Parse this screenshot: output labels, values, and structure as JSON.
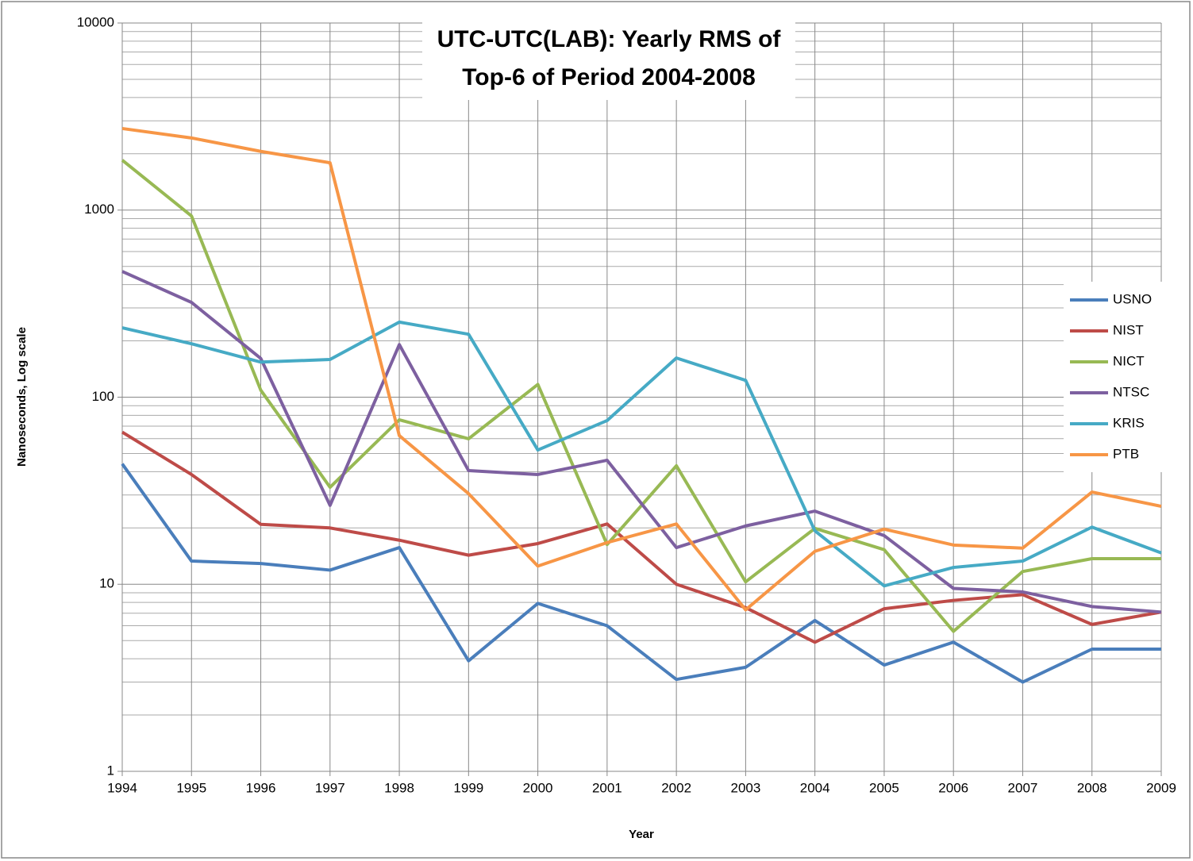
{
  "chart_data": {
    "type": "line",
    "title": "UTC-UTC(LAB): Yearly RMS of Top-6 of Period 2004-2008",
    "xlabel": "Year",
    "ylabel": "Nanoseconds,  Log scale",
    "x": [
      1994,
      1995,
      1996,
      1997,
      1998,
      1999,
      2000,
      2001,
      2002,
      2003,
      2004,
      2005,
      2006,
      2007,
      2008,
      2009
    ],
    "xlim": [
      1994,
      2009
    ],
    "xticks": [
      1994,
      1995,
      1996,
      1997,
      1998,
      1999,
      2000,
      2001,
      2002,
      2003,
      2004,
      2005,
      2006,
      2007,
      2008,
      2009
    ],
    "ylim": [
      1,
      10000
    ],
    "yticks": [
      1,
      10,
      100,
      1000,
      10000
    ],
    "log_y": true,
    "grid": true,
    "minor_grid": true,
    "legend": "right",
    "series": [
      {
        "name": "USNO",
        "color": "#4a7ebb",
        "values": [
          44,
          13.3,
          12.9,
          11.9,
          15.7,
          3.9,
          7.9,
          6.0,
          3.1,
          3.6,
          6.4,
          3.7,
          4.9,
          3.0,
          4.5,
          4.5
        ]
      },
      {
        "name": "NIST",
        "color": "#be4b48",
        "values": [
          65,
          38.6,
          20.9,
          20,
          17.2,
          14.3,
          16.5,
          21,
          10,
          7.5,
          4.9,
          7.4,
          8.2,
          8.8,
          6.1,
          7.1
        ]
      },
      {
        "name": "NICT",
        "color": "#98b954",
        "values": [
          1850,
          930,
          109,
          33,
          75.7,
          59.9,
          117,
          16.3,
          43,
          10.3,
          19.9,
          15.3,
          5.6,
          11.7,
          13.7,
          13.7
        ]
      },
      {
        "name": "NTSC",
        "color": "#7d60a0",
        "values": [
          470,
          321,
          161,
          26.4,
          191,
          40.5,
          38.6,
          46,
          15.7,
          20.5,
          24.6,
          18.2,
          9.5,
          9.1,
          7.6,
          7.1
        ]
      },
      {
        "name": "KRIS",
        "color": "#46aac5",
        "values": [
          235,
          193,
          154,
          159,
          252,
          217,
          52.2,
          75,
          162,
          123,
          19.3,
          9.8,
          12.3,
          13.3,
          20.2,
          14.7
        ]
      },
      {
        "name": "PTB",
        "color": "#f79646",
        "values": [
          2730,
          2430,
          2060,
          1790,
          62.3,
          30.5,
          12.5,
          16.7,
          21,
          7.3,
          15,
          19.7,
          16.2,
          15.6,
          31.1,
          26.1
        ]
      }
    ]
  }
}
